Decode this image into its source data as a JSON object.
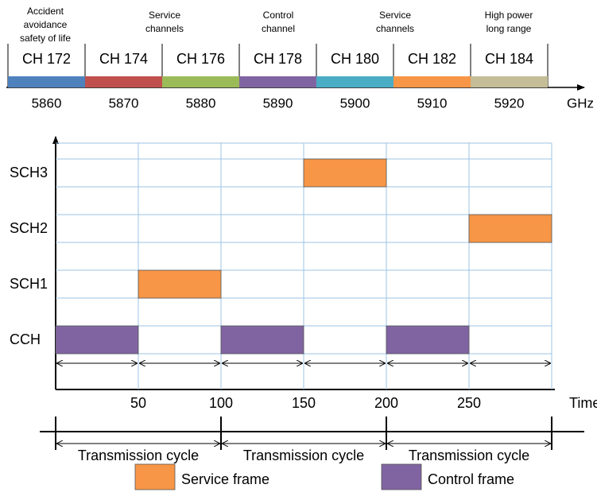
{
  "spectrum": {
    "annotations": [
      [
        "Accident",
        "avoidance",
        "safety of life"
      ],
      [
        "Service",
        "channels"
      ],
      [
        "Control",
        "channel"
      ],
      [
        "Service",
        "channels"
      ],
      [
        "High power",
        "long range"
      ]
    ],
    "channels": [
      {
        "label": "CH 172",
        "color": "#4f81bd"
      },
      {
        "label": "CH 174",
        "color": "#c0504d"
      },
      {
        "label": "CH 176",
        "color": "#9bbb59"
      },
      {
        "label": "CH 178",
        "color": "#8064a2"
      },
      {
        "label": "CH 180",
        "color": "#4bacc6"
      },
      {
        "label": "CH 182",
        "color": "#f79646"
      },
      {
        "label": "CH 184",
        "color": "#c4bd97"
      }
    ],
    "frequencies": [
      "5860",
      "5870",
      "5880",
      "5890",
      "5900",
      "5910",
      "5920"
    ],
    "unit": "GHz"
  },
  "timing": {
    "rows": [
      "SCH3",
      "SCH2",
      "SCH1",
      "CCH"
    ],
    "ticks": [
      "50",
      "100",
      "150",
      "200",
      "250"
    ],
    "axis_label": "Time(ms)",
    "cycles": [
      "Transmission cycle",
      "Transmission cycle",
      "Transmission cycle"
    ]
  },
  "legend": [
    {
      "label": "Service frame",
      "color": "#f79646"
    },
    {
      "label": "Control frame",
      "color": "#8064a2"
    }
  ]
}
